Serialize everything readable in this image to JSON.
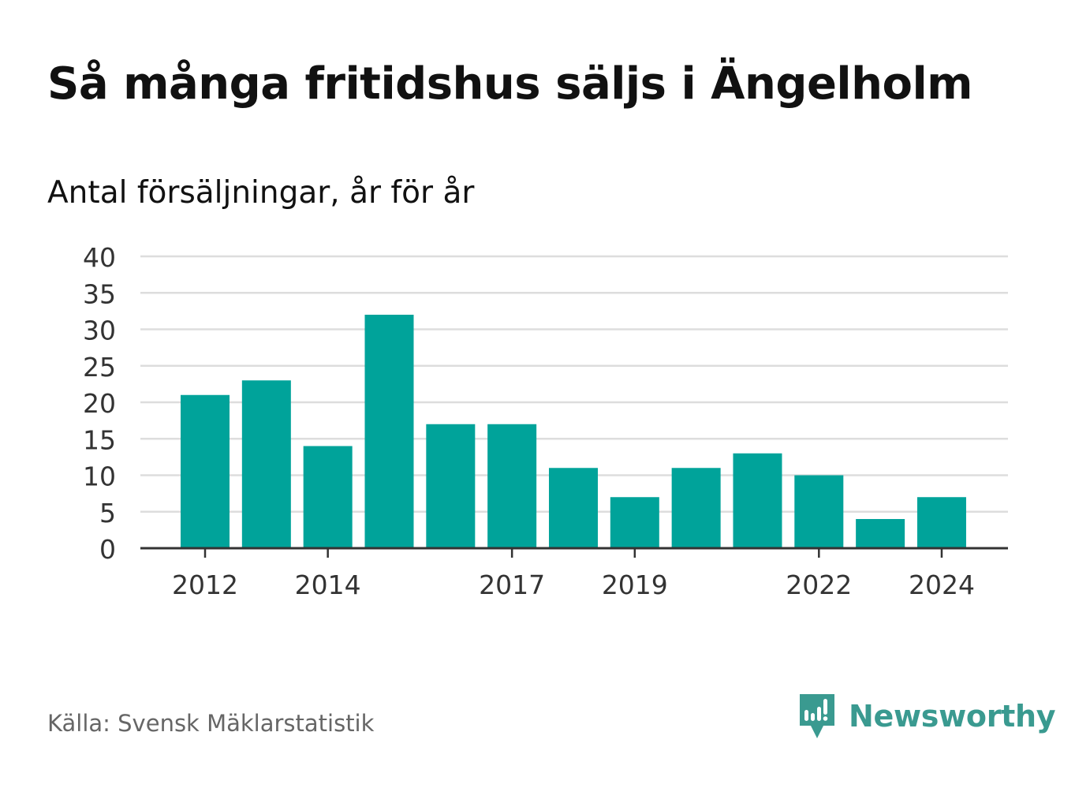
{
  "header": {
    "title": "Så många fritidshus säljs i Ängelholm",
    "subtitle": "Antal försäljningar, år för år"
  },
  "footer": {
    "source": "Källa: Svensk Mäklarstatistik",
    "brand": "Newsworthy",
    "brand_icon": "newsworthy-logo-icon"
  },
  "colors": {
    "bar": "#00a39a",
    "grid": "#dddddd",
    "axis": "#333333",
    "brand": "#3a9a90"
  },
  "chart_data": {
    "type": "bar",
    "categories": [
      "2012",
      "2013",
      "2014",
      "2015",
      "2016",
      "2017",
      "2018",
      "2019",
      "2020",
      "2021",
      "2022",
      "2023",
      "2024"
    ],
    "values": [
      21,
      23,
      14,
      32,
      17,
      17,
      11,
      7,
      11,
      13,
      10,
      4,
      7
    ],
    "x_tick_labels": [
      "2012",
      "2014",
      "2017",
      "2019",
      "2022",
      "2024"
    ],
    "y_ticks": [
      0,
      5,
      10,
      15,
      20,
      25,
      30,
      35,
      40
    ],
    "ylim": [
      0,
      40
    ],
    "title": "Så många fritidshus säljs i Ängelholm",
    "subtitle": "Antal försäljningar, år för år",
    "xlabel": "",
    "ylabel": "",
    "grid": true,
    "legend": "none"
  }
}
